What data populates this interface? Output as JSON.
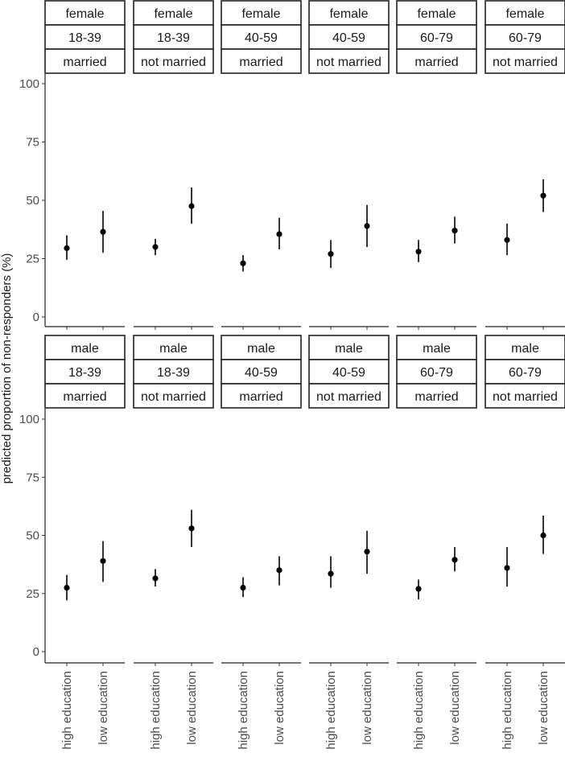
{
  "chart_data": {
    "type": "scatter",
    "title": "",
    "xlabel": "",
    "ylabel": "predicted proportion of non-responders (%)",
    "categories": [
      "high education",
      "low education"
    ],
    "yticks": [
      0,
      25,
      50,
      75,
      100
    ],
    "ylim": [
      0,
      100
    ],
    "grid": false,
    "legend": "none",
    "facets": [
      {
        "sex": "female",
        "age": "18-39",
        "marital": "married",
        "points": [
          {
            "x": "high education",
            "y": 29.5,
            "lo": 24.5,
            "hi": 35
          },
          {
            "x": "low education",
            "y": 36.5,
            "lo": 27.5,
            "hi": 45.5
          }
        ]
      },
      {
        "sex": "female",
        "age": "18-39",
        "marital": "not married",
        "points": [
          {
            "x": "high education",
            "y": 30,
            "lo": 26.5,
            "hi": 33.5
          },
          {
            "x": "low education",
            "y": 47.5,
            "lo": 40,
            "hi": 55.5
          }
        ]
      },
      {
        "sex": "female",
        "age": "40-59",
        "marital": "married",
        "points": [
          {
            "x": "high education",
            "y": 23,
            "lo": 19.5,
            "hi": 26.5
          },
          {
            "x": "low education",
            "y": 35.5,
            "lo": 29,
            "hi": 42.5
          }
        ]
      },
      {
        "sex": "female",
        "age": "40-59",
        "marital": "not married",
        "points": [
          {
            "x": "high education",
            "y": 27,
            "lo": 21,
            "hi": 33
          },
          {
            "x": "low education",
            "y": 39,
            "lo": 30,
            "hi": 48
          }
        ]
      },
      {
        "sex": "female",
        "age": "60-79",
        "marital": "married",
        "points": [
          {
            "x": "high education",
            "y": 28,
            "lo": 23.5,
            "hi": 33
          },
          {
            "x": "low education",
            "y": 37,
            "lo": 31.5,
            "hi": 43
          }
        ]
      },
      {
        "sex": "female",
        "age": "60-79",
        "marital": "not married",
        "points": [
          {
            "x": "high education",
            "y": 33,
            "lo": 26.5,
            "hi": 40
          },
          {
            "x": "low education",
            "y": 52,
            "lo": 45,
            "hi": 59
          }
        ]
      },
      {
        "sex": "male",
        "age": "18-39",
        "marital": "married",
        "points": [
          {
            "x": "high education",
            "y": 27.5,
            "lo": 22,
            "hi": 33
          },
          {
            "x": "low education",
            "y": 39,
            "lo": 30,
            "hi": 47.5
          }
        ]
      },
      {
        "sex": "male",
        "age": "18-39",
        "marital": "not married",
        "points": [
          {
            "x": "high education",
            "y": 31.5,
            "lo": 28,
            "hi": 35.5
          },
          {
            "x": "low education",
            "y": 53,
            "lo": 45,
            "hi": 61
          }
        ]
      },
      {
        "sex": "male",
        "age": "40-59",
        "marital": "married",
        "points": [
          {
            "x": "high education",
            "y": 27.5,
            "lo": 23.5,
            "hi": 32
          },
          {
            "x": "low education",
            "y": 35,
            "lo": 28.5,
            "hi": 41
          }
        ]
      },
      {
        "sex": "male",
        "age": "40-59",
        "marital": "not married",
        "points": [
          {
            "x": "high education",
            "y": 33.5,
            "lo": 27.5,
            "hi": 41
          },
          {
            "x": "low education",
            "y": 43,
            "lo": 33.5,
            "hi": 52
          }
        ]
      },
      {
        "sex": "male",
        "age": "60-79",
        "marital": "married",
        "points": [
          {
            "x": "high education",
            "y": 27,
            "lo": 22.5,
            "hi": 31
          },
          {
            "x": "low education",
            "y": 39.5,
            "lo": 34.5,
            "hi": 45
          }
        ]
      },
      {
        "sex": "male",
        "age": "60-79",
        "marital": "not married",
        "points": [
          {
            "x": "high education",
            "y": 36,
            "lo": 28,
            "hi": 45
          },
          {
            "x": "low education",
            "y": 50,
            "lo": 42,
            "hi": 58.5
          }
        ]
      }
    ]
  }
}
